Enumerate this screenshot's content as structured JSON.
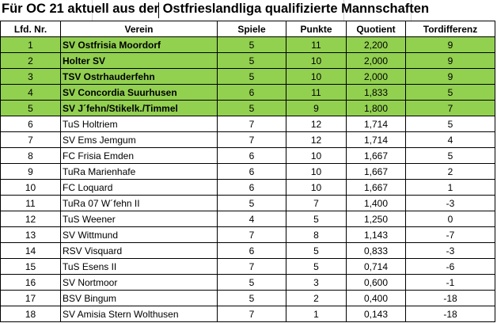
{
  "title": "Für OC 21 aktuell aus der Ostfrieslandliga qualifizierte Mannschaften",
  "colors": {
    "highlight": "#92d050",
    "border": "#000000"
  },
  "headers": {
    "rank": "Lfd. Nr.",
    "team": "Verein",
    "games": "Spiele",
    "points": "Punkte",
    "quotient": "Quotient",
    "goal_diff": "Tordifferenz"
  },
  "rows": [
    {
      "rank": "1",
      "team": "SV Ostfrisia Moordorf",
      "games": "5",
      "points": "11",
      "quotient": "2,200",
      "goal_diff": "9",
      "highlight": true
    },
    {
      "rank": "2",
      "team": "Holter SV",
      "games": "5",
      "points": "10",
      "quotient": "2,000",
      "goal_diff": "9",
      "highlight": true
    },
    {
      "rank": "3",
      "team": "TSV Ostrhauderfehn",
      "games": "5",
      "points": "10",
      "quotient": "2,000",
      "goal_diff": "9",
      "highlight": true
    },
    {
      "rank": "4",
      "team": "SV Concordia Suurhusen",
      "games": "6",
      "points": "11",
      "quotient": "1,833",
      "goal_diff": "5",
      "highlight": true
    },
    {
      "rank": "5",
      "team": "SV J´fehn/Stikelk./Timmel",
      "games": "5",
      "points": "9",
      "quotient": "1,800",
      "goal_diff": "7",
      "highlight": true
    },
    {
      "rank": "6",
      "team": "TuS Holtriem",
      "games": "7",
      "points": "12",
      "quotient": "1,714",
      "goal_diff": "5",
      "highlight": false
    },
    {
      "rank": "7",
      "team": "SV Ems Jemgum",
      "games": "7",
      "points": "12",
      "quotient": "1,714",
      "goal_diff": "4",
      "highlight": false
    },
    {
      "rank": "8",
      "team": "FC Frisia Emden",
      "games": "6",
      "points": "10",
      "quotient": "1,667",
      "goal_diff": "5",
      "highlight": false
    },
    {
      "rank": "9",
      "team": "TuRa Marienhafe",
      "games": "6",
      "points": "10",
      "quotient": "1,667",
      "goal_diff": "2",
      "highlight": false
    },
    {
      "rank": "10",
      "team": "FC Loquard",
      "games": "6",
      "points": "10",
      "quotient": "1,667",
      "goal_diff": "1",
      "highlight": false
    },
    {
      "rank": "11",
      "team": "TuRa 07 W´fehn II",
      "games": "5",
      "points": "7",
      "quotient": "1,400",
      "goal_diff": "-3",
      "highlight": false
    },
    {
      "rank": "12",
      "team": "TuS Weener",
      "games": "4",
      "points": "5",
      "quotient": "1,250",
      "goal_diff": "0",
      "highlight": false
    },
    {
      "rank": "13",
      "team": "SV Wittmund",
      "games": "7",
      "points": "8",
      "quotient": "1,143",
      "goal_diff": "-7",
      "highlight": false
    },
    {
      "rank": "14",
      "team": "RSV Visquard",
      "games": "6",
      "points": "5",
      "quotient": "0,833",
      "goal_diff": "-3",
      "highlight": false
    },
    {
      "rank": "15",
      "team": "TuS Esens II",
      "games": "7",
      "points": "5",
      "quotient": "0,714",
      "goal_diff": "-6",
      "highlight": false
    },
    {
      "rank": "16",
      "team": "SV Nortmoor",
      "games": "5",
      "points": "3",
      "quotient": "0,600",
      "goal_diff": "-1",
      "highlight": false
    },
    {
      "rank": "17",
      "team": "BSV Bingum",
      "games": "5",
      "points": "2",
      "quotient": "0,400",
      "goal_diff": "-18",
      "highlight": false
    },
    {
      "rank": "18",
      "team": "SV Amisia Stern Wolthusen",
      "games": "7",
      "points": "1",
      "quotient": "0,143",
      "goal_diff": "-18",
      "highlight": false
    }
  ]
}
